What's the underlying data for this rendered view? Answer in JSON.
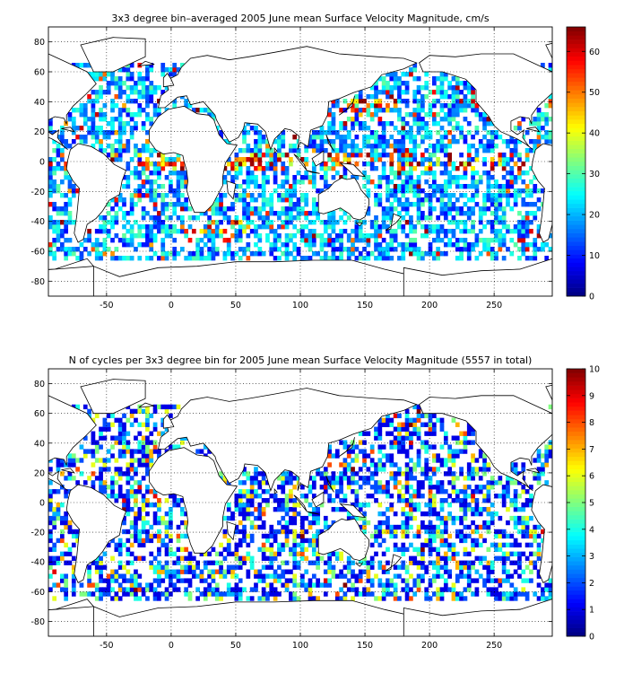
{
  "chart_data": [
    {
      "type": "heatmap",
      "title": "3x3 degree bin–averaged 2005 June mean Surface Velocity Magnitude, cm/s",
      "xlim": [
        -95,
        295
      ],
      "ylim": [
        -90,
        90
      ],
      "x_ticks": [
        "-50",
        "0",
        "50",
        "100",
        "150",
        "200",
        "250"
      ],
      "y_ticks": [
        "80",
        "60",
        "40",
        "20",
        "0",
        "-20",
        "-40",
        "-60",
        "-80"
      ],
      "colorbar_ticks": [
        "60",
        "50",
        "40",
        "30",
        "20",
        "10",
        "0"
      ],
      "colorbar_range": [
        0,
        66
      ],
      "grid": true,
      "colormap": "jet",
      "bin_size_deg": 3
    },
    {
      "type": "heatmap",
      "title": "N of cycles per 3x3 degree bin for 2005 June mean Surface Velocity Magnitude (5557 in total)",
      "xlim": [
        -95,
        295
      ],
      "ylim": [
        -90,
        90
      ],
      "x_ticks": [
        "-50",
        "0",
        "50",
        "100",
        "150",
        "200",
        "250"
      ],
      "y_ticks": [
        "80",
        "60",
        "40",
        "20",
        "0",
        "-20",
        "-40",
        "-60",
        "-80"
      ],
      "colorbar_ticks": [
        "10",
        "9",
        "8",
        "7",
        "6",
        "5",
        "4",
        "3",
        "2",
        "1",
        "0"
      ],
      "colorbar_range": [
        0,
        10
      ],
      "grid": true,
      "colormap": "jet",
      "bin_size_deg": 3
    }
  ]
}
